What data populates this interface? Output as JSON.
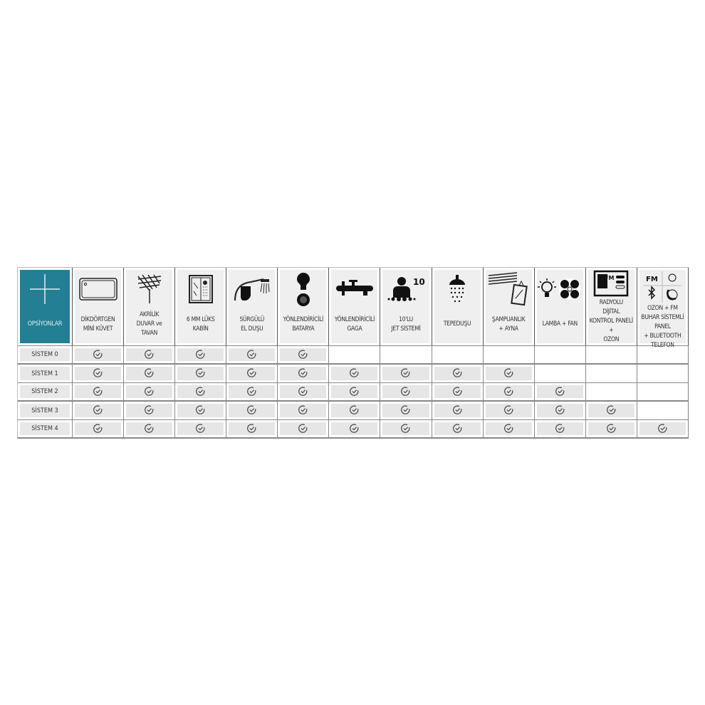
{
  "header": {
    "corner_label": "OPSİYONLAR",
    "corner_icon": "plus-icon",
    "accent_color": "#237f93",
    "columns": [
      {
        "label": "DİKDÖRTGEN\nMİNİ KÜVET",
        "icon": "bathtub-icon"
      },
      {
        "label": "AKRİLİK\nDUVAR ve\nTAVAN",
        "icon": "acrylic-panel-icon"
      },
      {
        "label": "6 MM LÜKS\nKABİN",
        "icon": "cabin-icon"
      },
      {
        "label": "SÜRGÜLÜ\nEL DUŞU",
        "icon": "hand-shower-icon"
      },
      {
        "label": "YÖNLENDİRİCİLİ\nBATARYA",
        "icon": "faucet-icon"
      },
      {
        "label": "YÖNLENDİRİCİLİ\nGAGA",
        "icon": "spout-icon"
      },
      {
        "label": "10'LU\nJET SİSTEMİ",
        "icon": "jet-system-icon",
        "badge": "10"
      },
      {
        "label": "TEPEDUŞU",
        "icon": "rain-shower-icon"
      },
      {
        "label": "ŞAMPUANLIK\n+ AYNA",
        "icon": "shelf-mirror-icon"
      },
      {
        "label": "LAMBA + FAN",
        "icon": "lamp-fan-icon"
      },
      {
        "label": "RADYOLU\nDİJİTAL\nKONTROL PANELİ\n+\nOZON",
        "icon": "radio-panel-icon",
        "badge": "FM"
      },
      {
        "label": "OZON + FM\nBUHAR SİSTEMLİ\nPANEL\n+ BLUETOOTH\nTELEFON",
        "icon": "fm-bluetooth-phone-icon",
        "badge": "FM"
      }
    ]
  },
  "rows": [
    {
      "label": "SİSTEM 0",
      "checks": [
        true,
        true,
        true,
        true,
        true,
        false,
        false,
        false,
        false,
        false,
        false,
        false
      ]
    },
    {
      "label": "SİSTEM 1",
      "checks": [
        true,
        true,
        true,
        true,
        true,
        true,
        true,
        true,
        true,
        false,
        false,
        false
      ]
    },
    {
      "label": "SİSTEM 2",
      "checks": [
        true,
        true,
        true,
        true,
        true,
        true,
        true,
        true,
        true,
        true,
        false,
        false
      ]
    },
    {
      "label": "SİSTEM 3",
      "checks": [
        true,
        true,
        true,
        true,
        true,
        true,
        true,
        true,
        true,
        true,
        true,
        false
      ]
    },
    {
      "label": "SİSTEM 4",
      "checks": [
        true,
        true,
        true,
        true,
        true,
        true,
        true,
        true,
        true,
        true,
        true,
        true
      ]
    }
  ],
  "check_icon": "check-circle-icon"
}
